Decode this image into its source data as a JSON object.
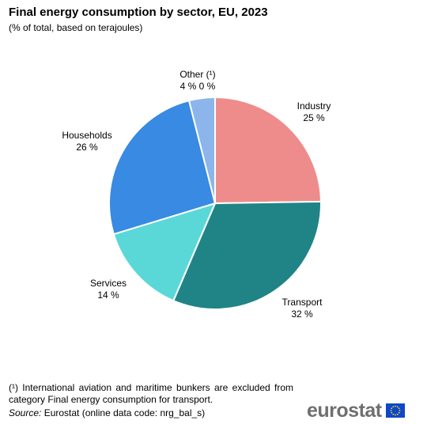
{
  "header": {
    "title": "Final energy consumption by sector, EU, 2023",
    "subtitle": "(% of total, based on terajoules)"
  },
  "chart_data": {
    "type": "pie",
    "title": "Final energy consumption by sector, EU, 2023",
    "subtitle": "(% of total, based on terajoules)",
    "slices": [
      {
        "label": "Industry",
        "value": 25,
        "value_label": "25 %",
        "color": "#ee8c8c"
      },
      {
        "label": "Transport",
        "value": 32,
        "value_label": "32 %",
        "color": "#208486"
      },
      {
        "label": "Services",
        "value": 14,
        "value_label": "14 %",
        "color": "#5ad8d8"
      },
      {
        "label": "Households",
        "value": 26,
        "value_label": "26 %",
        "color": "#388ae2"
      },
      {
        "label": "Other (¹)",
        "value": 4,
        "value_label": "4 % 0 %",
        "color": "#8cb6eb"
      }
    ],
    "start": "12 o'clock",
    "direction": "clockwise"
  },
  "footer": {
    "footnote": "(¹) International aviation and maritime bunkers are excluded from category Final energy consumption for transport.",
    "source_label": "Source:",
    "source_text": " Eurostat (online data code: nrg_bal_s)",
    "logo_text": "eurostat"
  },
  "colors": {
    "logo_text": "#6f6f6f",
    "eu_flag_blue": "#0e47cb",
    "eu_flag_stars": "#ffdd00"
  }
}
